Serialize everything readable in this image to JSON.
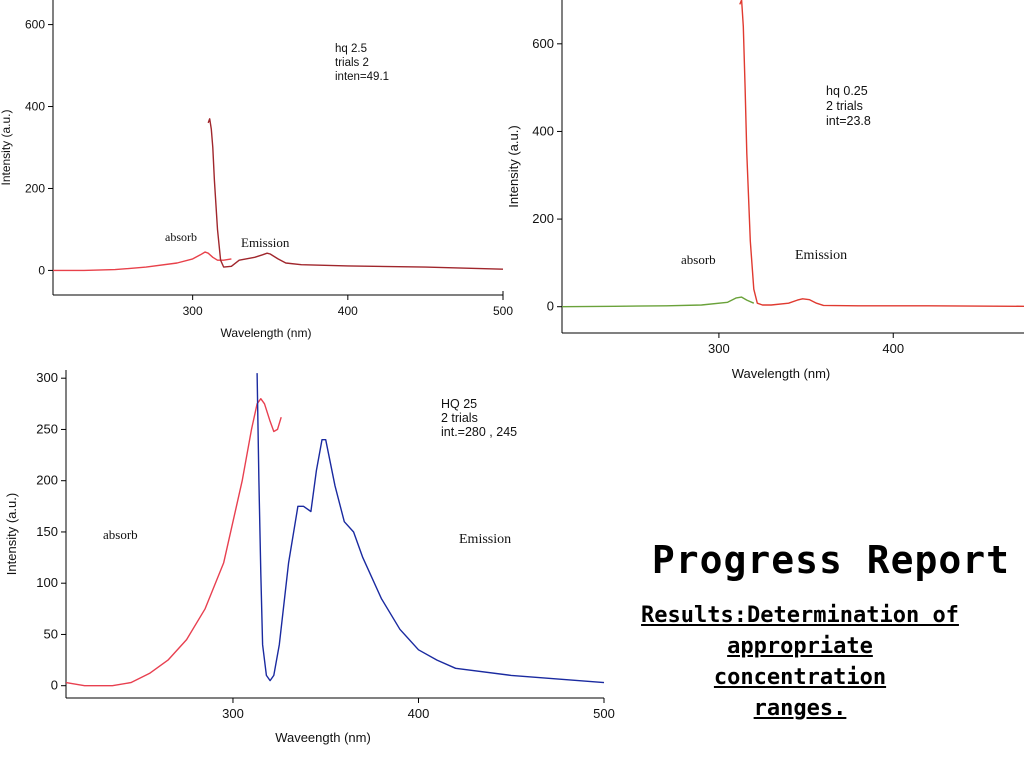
{
  "slide": {
    "title": "Progress Report",
    "subtitle_lines": [
      "Results:Determination of",
      "appropriate",
      "concentration",
      "ranges."
    ]
  },
  "chart_data": [
    {
      "type": "line",
      "ylabel": "Intensity (a.u.)",
      "xlabel": "Wavelength (nm)",
      "xlim": [
        210,
        500
      ],
      "ylim": [
        -60,
        660
      ],
      "xticks": [
        300,
        400,
        500
      ],
      "yticks": [
        0,
        200,
        400,
        600
      ],
      "annotation_lines": [
        "hq 2.5",
        "trials 2",
        "inten=49.1"
      ],
      "labels": {
        "absorb": "absorb",
        "emission": "Emission"
      },
      "colors": {
        "absorb": "#e8414a",
        "emission": "#a0262c"
      },
      "series": [
        {
          "role": "absorb",
          "x": [
            210,
            230,
            250,
            270,
            290,
            300,
            305,
            308,
            310,
            313,
            316,
            320,
            325
          ],
          "y": [
            0,
            0,
            2,
            8,
            18,
            28,
            38,
            45,
            42,
            32,
            25,
            25,
            28
          ]
        },
        {
          "role": "emission",
          "x": [
            310,
            311,
            312,
            313,
            314,
            316,
            318,
            320,
            325,
            330,
            340,
            345,
            348,
            350,
            355,
            360,
            370,
            400,
            450,
            500
          ],
          "y": [
            360,
            370,
            345,
            300,
            220,
            100,
            25,
            8,
            10,
            25,
            32,
            38,
            42,
            40,
            28,
            18,
            14,
            11,
            8,
            3
          ]
        }
      ]
    },
    {
      "type": "line",
      "ylabel": "Intensity (a.u.)",
      "xlabel": "Wavelength (nm)",
      "xlim": [
        210,
        475
      ],
      "ylim": [
        -60,
        700
      ],
      "xticks": [
        300,
        400
      ],
      "yticks": [
        0,
        200,
        400,
        600
      ],
      "annotation_lines": [
        "hq 0.25",
        "2 trials",
        "int=23.8"
      ],
      "labels": {
        "absorb": "absorb",
        "emission": "Emission"
      },
      "colors": {
        "absorb": "#6aa23a",
        "emission": "#e03a30"
      },
      "series": [
        {
          "role": "absorb",
          "x": [
            210,
            240,
            270,
            290,
            305,
            310,
            313,
            316,
            320
          ],
          "y": [
            0,
            1,
            2,
            4,
            10,
            20,
            22,
            15,
            8
          ]
        },
        {
          "role": "emission",
          "x": [
            312,
            313,
            314,
            315,
            316,
            318,
            320,
            322,
            325,
            330,
            340,
            345,
            348,
            352,
            356,
            360,
            380,
            420,
            475
          ],
          "y": [
            690,
            700,
            640,
            500,
            350,
            150,
            40,
            8,
            4,
            4,
            8,
            15,
            18,
            16,
            8,
            3,
            2,
            2,
            1
          ]
        }
      ]
    },
    {
      "type": "line",
      "ylabel": "Intensity (a.u.)",
      "xlabel": "Waveength (nm)",
      "xlim": [
        210,
        500
      ],
      "ylim": [
        -12,
        308
      ],
      "xticks": [
        300,
        400,
        500
      ],
      "yticks": [
        0,
        50,
        100,
        150,
        200,
        250,
        300
      ],
      "annotation_lines": [
        "HQ 25",
        "2 trials",
        "int.=280 , 245"
      ],
      "labels": {
        "absorb": "absorb",
        "emission": "Emission"
      },
      "colors": {
        "absorb": "#e84050",
        "emission": "#1a2aa0"
      },
      "series": [
        {
          "role": "absorb",
          "x": [
            210,
            220,
            235,
            245,
            255,
            265,
            275,
            285,
            295,
            305,
            310,
            313,
            315,
            317,
            320,
            322,
            324,
            326
          ],
          "y": [
            3,
            0,
            0,
            3,
            12,
            25,
            45,
            75,
            120,
            200,
            250,
            275,
            280,
            275,
            258,
            248,
            250,
            262
          ]
        },
        {
          "role": "emission",
          "x": [
            313,
            314,
            315,
            316,
            318,
            320,
            322,
            325,
            330,
            335,
            338,
            342,
            345,
            348,
            350,
            355,
            360,
            365,
            370,
            380,
            390,
            400,
            410,
            420,
            450,
            500
          ],
          "y": [
            305,
            200,
            110,
            40,
            10,
            5,
            10,
            40,
            120,
            175,
            175,
            170,
            210,
            240,
            240,
            195,
            160,
            150,
            125,
            85,
            55,
            35,
            25,
            17,
            10,
            3
          ]
        }
      ]
    }
  ]
}
